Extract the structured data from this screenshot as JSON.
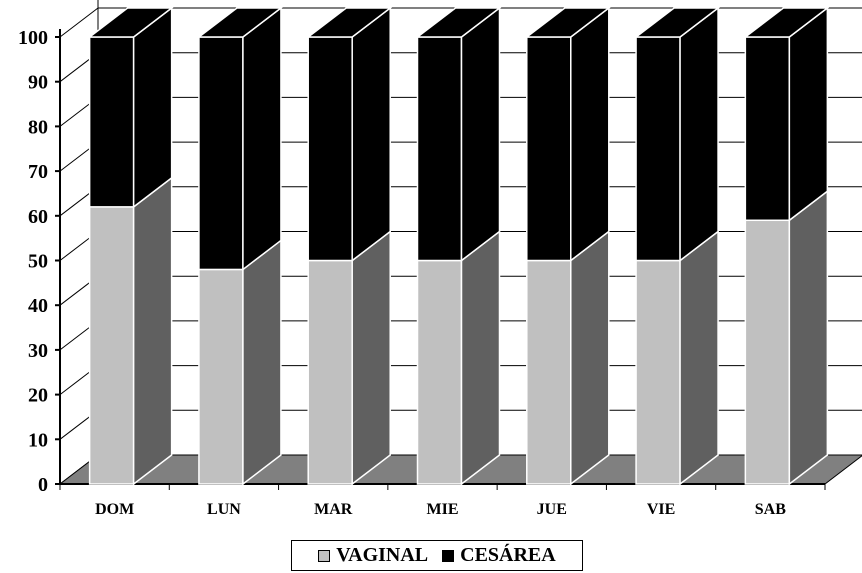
{
  "chart_data": {
    "type": "bar",
    "stacked": true,
    "three_d": true,
    "categories": [
      "DOM",
      "LUN",
      "MAR",
      "MIE",
      "JUE",
      "VIE",
      "SAB"
    ],
    "series": [
      {
        "name": "VAGINAL",
        "values": [
          62,
          48,
          50,
          50,
          50,
          50,
          59
        ],
        "color": "#c0c0c0"
      },
      {
        "name": "CESÁREA",
        "values": [
          38,
          52,
          50,
          50,
          50,
          50,
          41
        ],
        "color": "#000000"
      }
    ],
    "y_ticks": [
      "0",
      "10",
      "20",
      "30",
      "40",
      "50",
      "60",
      "70",
      "80",
      "90",
      "100"
    ],
    "ylim": [
      0,
      100
    ],
    "grid": true,
    "legend_position": "bottom"
  },
  "colors": {
    "side_face": "#606060",
    "floor": "#808080",
    "top_face": "#000000"
  }
}
